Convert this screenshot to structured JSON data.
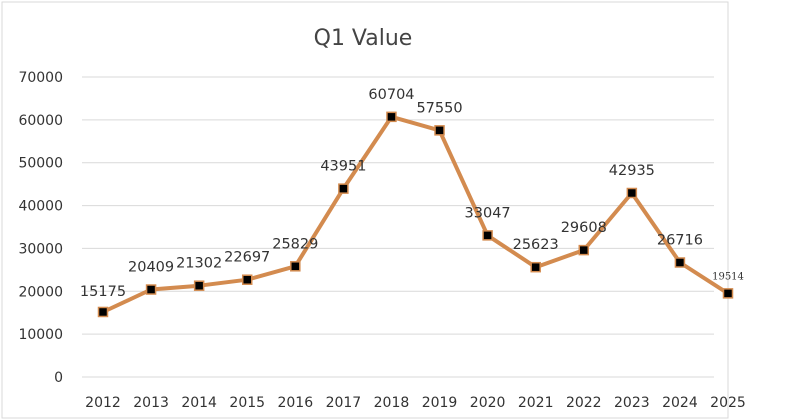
{
  "chart_data": {
    "type": "line",
    "title": "Q1 Value",
    "xlabel": "",
    "ylabel": "",
    "categories": [
      "2012",
      "2013",
      "2014",
      "2015",
      "2016",
      "2017",
      "2018",
      "2019",
      "2020",
      "2021",
      "2022",
      "2023",
      "2024",
      "2025"
    ],
    "series": [
      {
        "values": [
          15175,
          20409,
          21302,
          22697,
          25829,
          43951,
          60704,
          57550,
          33047,
          25623,
          29608,
          42935,
          26716,
          19514
        ],
        "data_labels": [
          "15175",
          "20409",
          "21302",
          "22697",
          "25829",
          "43951",
          "60704",
          "57550",
          "33047",
          "25623",
          "29608",
          "42935",
          "26716",
          "19514"
        ],
        "color": "#d38b4f",
        "marker_color": "#000000"
      }
    ],
    "y_ticks": [
      "0",
      "10000",
      "20000",
      "30000",
      "40000",
      "50000",
      "60000",
      "70000"
    ],
    "ylim": [
      0,
      70000
    ],
    "grid": true,
    "legend": "none"
  }
}
